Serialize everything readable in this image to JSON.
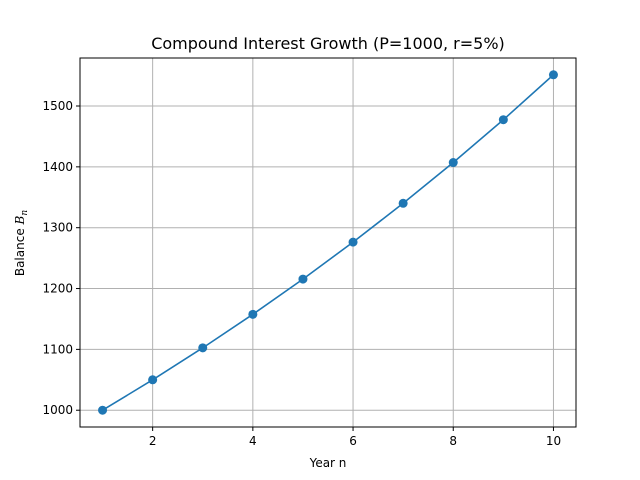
{
  "chart_data": {
    "type": "line",
    "title": "Compound Interest Growth (P=1000, r=5%)",
    "xlabel": "Year n",
    "ylabel": {
      "prefix": "Balance ",
      "var": "B",
      "sub": "n"
    },
    "x": [
      1,
      2,
      3,
      4,
      5,
      6,
      7,
      8,
      9,
      10
    ],
    "series": [
      {
        "values": [
          1000.0,
          1050.0,
          1102.5,
          1157.63,
          1215.51,
          1276.28,
          1340.1,
          1407.1,
          1477.46,
          1551.33
        ],
        "color": "#1f77b4",
        "marker": "circle"
      }
    ],
    "xlim": [
      0.55,
      10.45
    ],
    "ylim": [
      972.43,
      1578.9
    ],
    "xticks": [
      2,
      4,
      6,
      8,
      10
    ],
    "yticks": [
      1000,
      1100,
      1200,
      1300,
      1400,
      1500
    ],
    "grid": true,
    "legend": false
  }
}
